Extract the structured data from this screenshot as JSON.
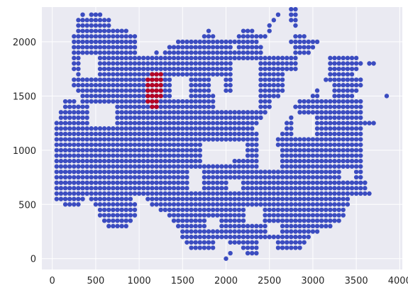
{
  "chart_data": {
    "type": "scatter",
    "title": "",
    "xlabel": "",
    "ylabel": "",
    "xlim": [
      -120,
      4030
    ],
    "ylim": [
      -100,
      2320
    ],
    "grid": true,
    "xticks": [
      0,
      500,
      1000,
      1500,
      2000,
      2500,
      3000,
      3500,
      4000
    ],
    "yticks": [
      0,
      500,
      1000,
      1500,
      2000
    ],
    "grid_step": 50,
    "colors": {
      "background": "#eaeaf2",
      "grid": "#ffffff",
      "base": "#3b4cc0",
      "highlight": "#b40426"
    },
    "series": [
      {
        "color": "#3b4cc0",
        "rows": [
          {
            "y": 2300,
            "runs": [
              [
                2750,
                2800
              ]
            ]
          },
          {
            "y": 2250,
            "runs": [
              [
                350,
                350
              ],
              [
                450,
                550
              ],
              [
                2600,
                2600
              ],
              [
                2750,
                2800
              ]
            ]
          },
          {
            "y": 2200,
            "runs": [
              [
                300,
                650
              ],
              [
                2550,
                2550
              ],
              [
                2750,
                2800
              ]
            ]
          },
          {
            "y": 2150,
            "runs": [
              [
                300,
                650
              ],
              [
                2500,
                2500
              ],
              [
                2800,
                2800
              ]
            ]
          },
          {
            "y": 2100,
            "runs": [
              [
                300,
                850
              ],
              [
                1800,
                1800
              ],
              [
                2200,
                2300
              ],
              [
                2500,
                2500
              ]
            ]
          },
          {
            "y": 2050,
            "runs": [
              [
                250,
                950
              ],
              [
                1750,
                1850
              ],
              [
                2150,
                2450
              ],
              [
                2800,
                2900
              ]
            ]
          },
          {
            "y": 2000,
            "runs": [
              [
                250,
                1000
              ],
              [
                1450,
                2350
              ],
              [
                2750,
                3050
              ]
            ]
          },
          {
            "y": 1950,
            "runs": [
              [
                250,
                1100
              ],
              [
                1350,
                2050
              ],
              [
                2150,
                2550
              ],
              [
                2750,
                3000
              ]
            ]
          },
          {
            "y": 1900,
            "runs": [
              [
                250,
                1200
              ],
              [
                1300,
                2500
              ],
              [
                2750,
                2950
              ]
            ]
          },
          {
            "y": 1850,
            "runs": [
              [
                250,
                1250
              ],
              [
                1300,
                2800
              ],
              [
                3050,
                3500
              ]
            ]
          },
          {
            "y": 1800,
            "runs": [
              [
                250,
                2800
              ],
              [
                3000,
                3550
              ],
              [
                3650,
                3700
              ]
            ]
          },
          {
            "y": 1750,
            "runs": [
              [
                250,
                2800
              ],
              [
                3000,
                3500
              ]
            ]
          },
          {
            "y": 1700,
            "runs": [
              [
                300,
                2750
              ],
              [
                3000,
                3450
              ]
            ]
          },
          {
            "y": 1650,
            "runs": [
              [
                250,
                2650
              ],
              [
                3150,
                3550
              ]
            ]
          },
          {
            "y": 1600,
            "runs": [
              [
                250,
                2650
              ],
              [
                3250,
                3550
              ]
            ]
          },
          {
            "y": 1550,
            "runs": [
              [
                300,
                2650
              ],
              [
                3050,
                3500
              ]
            ]
          },
          {
            "y": 1500,
            "runs": [
              [
                350,
                2600
              ],
              [
                3000,
                3450
              ],
              [
                3850,
                3850
              ]
            ]
          },
          {
            "y": 1450,
            "runs": [
              [
                150,
                250
              ],
              [
                350,
                2500
              ],
              [
                2850,
                3550
              ]
            ]
          },
          {
            "y": 1400,
            "runs": [
              [
                150,
                2500
              ],
              [
                2800,
                3550
              ]
            ]
          },
          {
            "y": 1350,
            "runs": [
              [
                100,
                2450
              ],
              [
                2850,
                3550
              ]
            ]
          },
          {
            "y": 1300,
            "runs": [
              [
                100,
                2400
              ],
              [
                2750,
                3550
              ]
            ]
          },
          {
            "y": 1250,
            "runs": [
              [
                50,
                2350
              ],
              [
                2700,
                3600
              ],
              [
                3650,
                3700
              ]
            ]
          },
          {
            "y": 1200,
            "runs": [
              [
                50,
                2300
              ],
              [
                2700,
                3550
              ]
            ]
          },
          {
            "y": 1150,
            "runs": [
              [
                50,
                2350
              ],
              [
                2650,
                3550
              ]
            ]
          },
          {
            "y": 1100,
            "runs": [
              [
                50,
                2350
              ],
              [
                2600,
                3550
              ]
            ]
          },
          {
            "y": 1050,
            "runs": [
              [
                50,
                2350
              ],
              [
                2600,
                3550
              ]
            ]
          },
          {
            "y": 1000,
            "runs": [
              [
                50,
                2400
              ],
              [
                2600,
                3550
              ]
            ]
          },
          {
            "y": 950,
            "runs": [
              [
                50,
                2400
              ],
              [
                2600,
                3550
              ]
            ]
          },
          {
            "y": 900,
            "runs": [
              [
                50,
                2450
              ],
              [
                2600,
                3550
              ]
            ]
          },
          {
            "y": 850,
            "runs": [
              [
                50,
                2500
              ],
              [
                2600,
                3550
              ]
            ]
          },
          {
            "y": 800,
            "runs": [
              [
                50,
                3550
              ]
            ]
          },
          {
            "y": 750,
            "runs": [
              [
                50,
                3550
              ]
            ]
          },
          {
            "y": 700,
            "runs": [
              [
                50,
                3600
              ]
            ]
          },
          {
            "y": 650,
            "runs": [
              [
                50,
                3600
              ]
            ]
          },
          {
            "y": 600,
            "runs": [
              [
                50,
                3650
              ]
            ]
          },
          {
            "y": 550,
            "runs": [
              [
                50,
                350
              ],
              [
                450,
                900
              ],
              [
                1100,
                3400
              ]
            ]
          },
          {
            "y": 500,
            "runs": [
              [
                150,
                300
              ],
              [
                500,
                950
              ],
              [
                1150,
                3400
              ]
            ]
          },
          {
            "y": 450,
            "runs": [
              [
                550,
                950
              ],
              [
                1250,
                3350
              ]
            ]
          },
          {
            "y": 400,
            "runs": [
              [
                550,
                950
              ],
              [
                1350,
                3350
              ]
            ]
          },
          {
            "y": 350,
            "runs": [
              [
                600,
                900
              ],
              [
                1400,
                3300
              ]
            ]
          },
          {
            "y": 300,
            "runs": [
              [
                650,
                850
              ],
              [
                1450,
                3200
              ]
            ]
          },
          {
            "y": 250,
            "runs": [
              [
                1500,
                3050
              ]
            ]
          },
          {
            "y": 200,
            "runs": [
              [
                1500,
                2950
              ]
            ]
          },
          {
            "y": 150,
            "runs": [
              [
                1550,
                2900
              ]
            ]
          },
          {
            "y": 100,
            "runs": [
              [
                1600,
                1900
              ],
              [
                2200,
                2850
              ]
            ]
          },
          {
            "y": 50,
            "runs": [
              [
                2050,
                2050
              ],
              [
                2250,
                2350
              ]
            ]
          },
          {
            "y": 0,
            "runs": [
              [
                2000,
                2000
              ]
            ]
          }
        ],
        "gaps": [
          {
            "x": [
              1000,
              1150
            ],
            "y": [
              2000,
              1900
            ]
          },
          {
            "x": [
              2100,
              2350
            ],
            "y": [
              1800,
              1400
            ]
          },
          {
            "x": [
              2450,
              2750
            ],
            "y": [
              1950,
              1900
            ]
          },
          {
            "x": [
              2700,
              2800
            ],
            "y": [
              1700,
              1450
            ]
          },
          {
            "x": [
              2950,
              3150
            ],
            "y": [
              1850,
              1700
            ]
          },
          {
            "x": [
              3100,
              3200
            ],
            "y": [
              1600,
              1500
            ]
          },
          {
            "x": [
              350,
              500
            ],
            "y": [
              1850,
              1700
            ]
          },
          {
            "x": [
              450,
              700
            ],
            "y": [
              1400,
              1250
            ]
          },
          {
            "x": [
              1400,
              1550
            ],
            "y": [
              1650,
              1500
            ]
          },
          {
            "x": [
              1850,
              1950
            ],
            "y": [
              1650,
              1550
            ]
          },
          {
            "x": [
              1900,
              2050
            ],
            "y": [
              1500,
              1400
            ]
          },
          {
            "x": [
              2800,
              3000
            ],
            "y": [
              1300,
              1150
            ]
          },
          {
            "x": [
              2400,
              2600
            ],
            "y": [
              1000,
              850
            ]
          },
          {
            "x": [
              1750,
              2050
            ],
            "y": [
              1050,
              900
            ]
          },
          {
            "x": [
              2050,
              2200
            ],
            "y": [
              1050,
              950
            ]
          },
          {
            "x": [
              3350,
              3450
            ],
            "y": [
              800,
              750
            ]
          },
          {
            "x": [
              1600,
              1700
            ],
            "y": [
              800,
              650
            ]
          },
          {
            "x": [
              2050,
              2150
            ],
            "y": [
              700,
              650
            ]
          },
          {
            "x": [
              2250,
              2400
            ],
            "y": [
              450,
              350
            ]
          },
          {
            "x": [
              1800,
              1900
            ],
            "y": [
              350,
              300
            ]
          },
          {
            "x": [
              2500,
              2600
            ],
            "y": [
              300,
              250
            ]
          },
          {
            "x": [
              1900,
              2000
            ],
            "y": [
              150,
              100
            ]
          },
          {
            "x": [
              2400,
              2550
            ],
            "y": [
              150,
              100
            ]
          }
        ]
      },
      {
        "color": "#b40426",
        "rows": [
          {
            "y": 1700,
            "runs": [
              [
                1150,
                1250
              ]
            ]
          },
          {
            "y": 1650,
            "runs": [
              [
                1100,
                1250
              ]
            ]
          },
          {
            "y": 1600,
            "runs": [
              [
                1100,
                1250
              ]
            ]
          },
          {
            "y": 1550,
            "runs": [
              [
                1100,
                1250
              ]
            ]
          },
          {
            "y": 1500,
            "runs": [
              [
                1100,
                1250
              ]
            ]
          },
          {
            "y": 1450,
            "runs": [
              [
                1100,
                1200
              ]
            ]
          },
          {
            "y": 1400,
            "runs": [
              [
                1150,
                1200
              ]
            ]
          }
        ],
        "gaps": []
      }
    ]
  }
}
